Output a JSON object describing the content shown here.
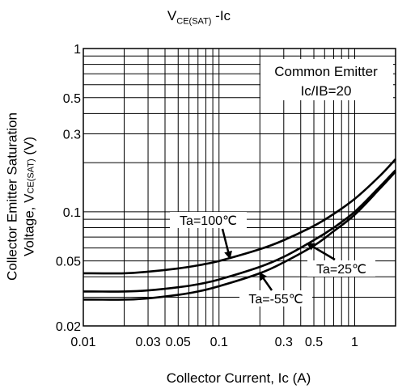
{
  "title": {
    "main": "V",
    "sub": "CE(SAT)",
    "rest": " -Ic"
  },
  "xlabel": "Collector Current, Ic (A)",
  "ylabel": {
    "line1": "Collector Emitter Saturation",
    "line2_pre": "Voltage, V",
    "line2_sub": "CE(SAT)",
    "line2_post": " (V)"
  },
  "chart_data": {
    "type": "line",
    "title": "VCE(SAT) -Ic",
    "xlabel": "Collector Current, Ic (A)",
    "ylabel": "Collector Emitter Saturation Voltage, VCE(SAT) (V)",
    "x_scale": "log",
    "y_scale": "log",
    "xlim": [
      0.01,
      2
    ],
    "ylim": [
      0.02,
      1
    ],
    "grid": true,
    "x_ticks": [
      {
        "v": 0.01,
        "label": "0.01"
      },
      {
        "v": 0.03,
        "label": "0.03"
      },
      {
        "v": 0.05,
        "label": "0.05"
      },
      {
        "v": 0.1,
        "label": "0.1"
      },
      {
        "v": 0.3,
        "label": "0.3"
      },
      {
        "v": 0.5,
        "label": "0.5"
      },
      {
        "v": 1,
        "label": "1"
      }
    ],
    "y_ticks": [
      {
        "v": 1,
        "label": "1"
      },
      {
        "v": 0.5,
        "label": "0.5"
      },
      {
        "v": 0.3,
        "label": "0.3"
      },
      {
        "v": 0.1,
        "label": "0.1"
      },
      {
        "v": 0.05,
        "label": "0.05"
      },
      {
        "v": 0.02,
        "label": "0.02"
      }
    ],
    "legend_box": {
      "line1": "Common Emitter",
      "line2": "Ic/IB=20",
      "placement": "top-right"
    },
    "series": [
      {
        "name": "Ta=100℃",
        "x": [
          0.01,
          0.02,
          0.03,
          0.05,
          0.07,
          0.1,
          0.2,
          0.3,
          0.5,
          0.7,
          1,
          1.5,
          2
        ],
        "y": [
          0.042,
          0.042,
          0.043,
          0.045,
          0.047,
          0.05,
          0.059,
          0.067,
          0.082,
          0.097,
          0.12,
          0.163,
          0.21
        ]
      },
      {
        "name": "Ta=25℃",
        "x": [
          0.01,
          0.02,
          0.03,
          0.05,
          0.07,
          0.1,
          0.2,
          0.3,
          0.5,
          0.7,
          1,
          1.5,
          2
        ],
        "y": [
          0.0325,
          0.0325,
          0.033,
          0.0345,
          0.036,
          0.0385,
          0.046,
          0.053,
          0.067,
          0.08,
          0.1,
          0.14,
          0.18
        ]
      },
      {
        "name": "Ta=-55℃",
        "x": [
          0.01,
          0.02,
          0.03,
          0.05,
          0.07,
          0.1,
          0.2,
          0.3,
          0.5,
          0.7,
          1,
          1.5,
          2
        ],
        "y": [
          0.029,
          0.029,
          0.0295,
          0.031,
          0.0325,
          0.035,
          0.042,
          0.049,
          0.062,
          0.076,
          0.096,
          0.136,
          0.176
        ]
      }
    ],
    "annotations": [
      {
        "text": "Ta=100℃",
        "series": 0,
        "arrow_x": 0.12
      },
      {
        "text": "Ta=25℃",
        "series": 1,
        "arrow_x": 0.45
      },
      {
        "text": "Ta=-55℃",
        "series": 2,
        "arrow_x": 0.2
      }
    ]
  }
}
